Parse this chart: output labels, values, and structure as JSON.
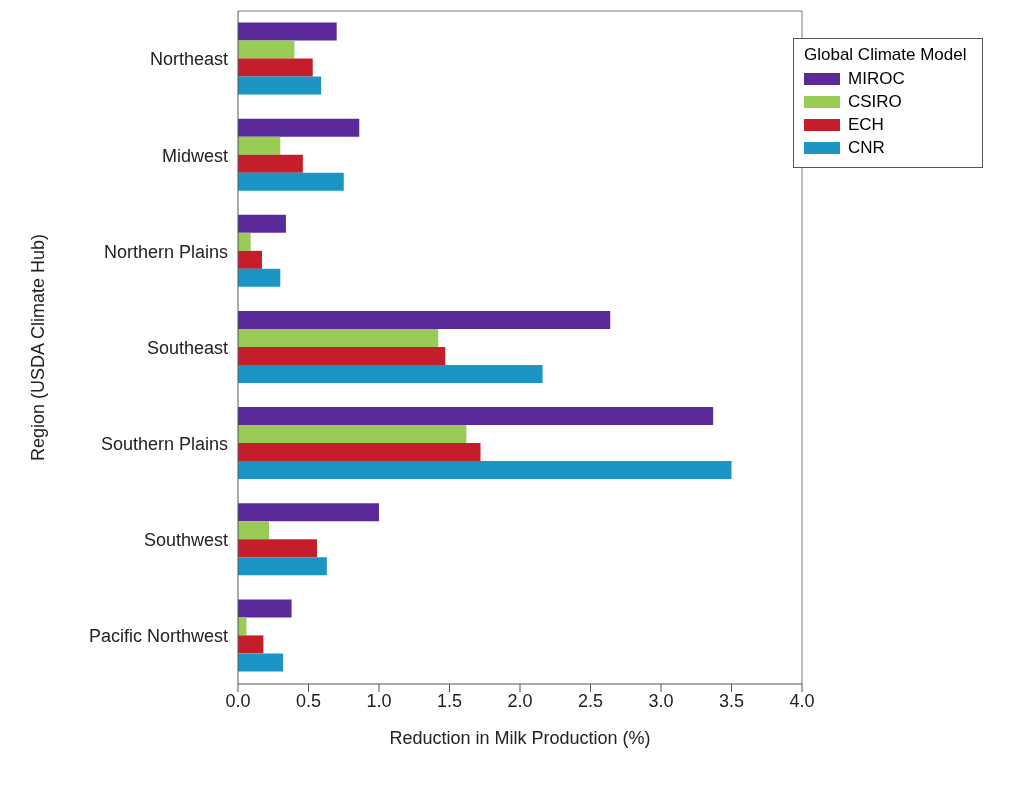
{
  "chart_data": {
    "type": "bar",
    "orientation": "horizontal",
    "xlabel": "Reduction in Milk Production (%)",
    "ylabel": "Region (USDA Climate Hub)",
    "legend_title": "Global Climate Model",
    "legend": "top right",
    "categories": [
      "Northeast",
      "Midwest",
      "Northern Plains",
      "Southeast",
      "Southern Plains",
      "Southwest",
      "Pacific Northwest"
    ],
    "series": [
      {
        "name": "MIROC",
        "color": "#5b2a9a",
        "values": [
          0.7,
          0.86,
          0.34,
          2.64,
          3.37,
          1.0,
          0.38
        ]
      },
      {
        "name": "CSIRO",
        "color": "#99cc55",
        "values": [
          0.4,
          0.3,
          0.09,
          1.42,
          1.62,
          0.22,
          0.06
        ]
      },
      {
        "name": "ECH",
        "color": "#c41e2a",
        "values": [
          0.53,
          0.46,
          0.17,
          1.47,
          1.72,
          0.56,
          0.18
        ]
      },
      {
        "name": "CNR",
        "color": "#1c94c4",
        "values": [
          0.59,
          0.75,
          0.3,
          2.16,
          3.5,
          0.63,
          0.32
        ]
      }
    ],
    "xlim": [
      0,
      4
    ],
    "xticks": [
      {
        "value": 0,
        "label": "0.0"
      },
      {
        "value": 0.5,
        "label": "0.5"
      },
      {
        "value": 1,
        "label": "1.0"
      },
      {
        "value": 1.5,
        "label": "1.5"
      },
      {
        "value": 2,
        "label": "2.0"
      },
      {
        "value": 2.5,
        "label": "2.5"
      },
      {
        "value": 3,
        "label": "3.0"
      },
      {
        "value": 3.5,
        "label": "3.5"
      },
      {
        "value": 4,
        "label": "4.0"
      }
    ],
    "grid": false
  }
}
